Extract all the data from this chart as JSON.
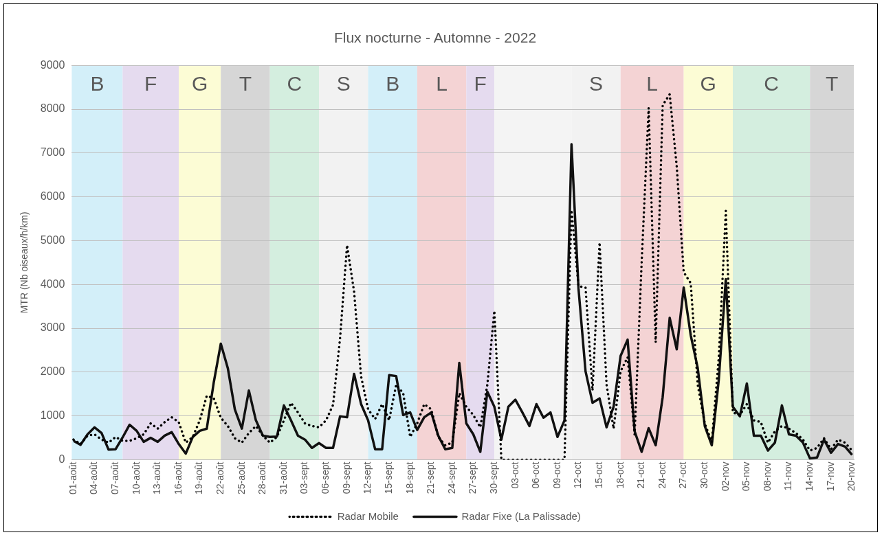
{
  "chart_data": {
    "type": "line",
    "title": "Flux nocturne - Automne - 2022",
    "ylabel": "MTR (Nb oiseaux/h/km)",
    "marker": "none",
    "grid": "y",
    "legend": "bottom",
    "x": [
      "--08-01",
      "--08-02",
      "--08-03",
      "--08-04",
      "--08-05",
      "--08-06",
      "--08-07",
      "--08-08",
      "--08-09",
      "--08-10",
      "--08-11",
      "--08-12",
      "--08-13",
      "--08-14",
      "--08-15",
      "--08-16",
      "--08-17",
      "--08-18",
      "--08-19",
      "--08-20",
      "--08-21",
      "--08-22",
      "--08-23",
      "--08-24",
      "--08-25",
      "--08-26",
      "--08-27",
      "--08-28",
      "--08-29",
      "--08-30",
      "--08-31",
      "--09-01",
      "--09-02",
      "--09-03",
      "--09-04",
      "--09-05",
      "--09-06",
      "--09-07",
      "--09-08",
      "--09-09",
      "--09-10",
      "--09-11",
      "--09-12",
      "--09-13",
      "--09-14",
      "--09-15",
      "--09-16",
      "--09-17",
      "--09-18",
      "--09-19",
      "--09-20",
      "--09-21",
      "--09-22",
      "--09-23",
      "--09-24",
      "--09-25",
      "--09-26",
      "--09-27",
      "--09-28",
      "--09-29",
      "--09-30",
      "--10-01",
      "--10-02",
      "--10-03",
      "--10-04",
      "--10-05",
      "--10-06",
      "--10-07",
      "--10-08",
      "--10-09",
      "--10-10",
      "--10-11",
      "--10-12",
      "--10-13",
      "--10-14",
      "--10-15",
      "--10-16",
      "--10-17",
      "--10-18",
      "--10-19",
      "--10-20",
      "--10-21",
      "--10-22",
      "--10-23",
      "--10-24",
      "--10-25",
      "--10-26",
      "--10-27",
      "--10-28",
      "--10-29",
      "--10-30",
      "--10-31",
      "--11-01",
      "--11-02",
      "--11-03",
      "--11-04",
      "--11-05",
      "--11-06",
      "--11-07",
      "--11-08",
      "--11-09",
      "--11-10",
      "--11-11",
      "--11-12",
      "--11-13",
      "--11-14",
      "--11-15",
      "--11-16",
      "--11-17",
      "--11-18",
      "--11-19",
      "--11-20"
    ],
    "xlim": [
      "--07-31T18:00",
      "--11-20T06:00"
    ],
    "xticks": [
      {
        "value": "--08-01",
        "label": "01-août"
      },
      {
        "value": "--08-04",
        "label": "04-août"
      },
      {
        "value": "--08-07",
        "label": "07-août"
      },
      {
        "value": "--08-10",
        "label": "10-août"
      },
      {
        "value": "--08-13",
        "label": "13-août"
      },
      {
        "value": "--08-16",
        "label": "16-août"
      },
      {
        "value": "--08-19",
        "label": "19-août"
      },
      {
        "value": "--08-22",
        "label": "22-août"
      },
      {
        "value": "--08-25",
        "label": "25-août"
      },
      {
        "value": "--08-28",
        "label": "28-août"
      },
      {
        "value": "--08-31",
        "label": "31-août"
      },
      {
        "value": "--09-03",
        "label": "03-sept"
      },
      {
        "value": "--09-06",
        "label": "06-sept"
      },
      {
        "value": "--09-09",
        "label": "09-sept"
      },
      {
        "value": "--09-12",
        "label": "12-sept"
      },
      {
        "value": "--09-15",
        "label": "15-sept"
      },
      {
        "value": "--09-18",
        "label": "18-sept"
      },
      {
        "value": "--09-21",
        "label": "21-sept"
      },
      {
        "value": "--09-24",
        "label": "24-sept"
      },
      {
        "value": "--09-27",
        "label": "27-sept"
      },
      {
        "value": "--09-30",
        "label": "30-sept"
      },
      {
        "value": "--10-03",
        "label": "03-oct"
      },
      {
        "value": "--10-06",
        "label": "06-oct"
      },
      {
        "value": "--10-09",
        "label": "09-oct"
      },
      {
        "value": "--10-12",
        "label": "12-oct"
      },
      {
        "value": "--10-15",
        "label": "15-oct"
      },
      {
        "value": "--10-18",
        "label": "18-oct"
      },
      {
        "value": "--10-21",
        "label": "21-oct"
      },
      {
        "value": "--10-24",
        "label": "24-oct"
      },
      {
        "value": "--10-27",
        "label": "27-oct"
      },
      {
        "value": "--10-30",
        "label": "30-oct"
      },
      {
        "value": "--11-02",
        "label": "02-nov"
      },
      {
        "value": "--11-05",
        "label": "05-nov"
      },
      {
        "value": "--11-08",
        "label": "08-nov"
      },
      {
        "value": "--11-11",
        "label": "11-nov"
      },
      {
        "value": "--11-14",
        "label": "14-nov"
      },
      {
        "value": "--11-17",
        "label": "17-nov"
      },
      {
        "value": "--11-20",
        "label": "20-nov"
      }
    ],
    "ylim": [
      0,
      9000
    ],
    "yticks": [
      0,
      1000,
      2000,
      3000,
      4000,
      5000,
      6000,
      7000,
      8000,
      9000
    ],
    "series": [
      {
        "name": "Radar Mobile",
        "color": "#000000",
        "line_style": "dotted",
        "values": [
          460,
          360,
          550,
          580,
          460,
          390,
          520,
          430,
          430,
          490,
          580,
          830,
          710,
          860,
          970,
          860,
          390,
          520,
          900,
          1460,
          1400,
          960,
          770,
          490,
          390,
          610,
          770,
          550,
          390,
          520,
          900,
          1300,
          1080,
          830,
          770,
          740,
          900,
          1250,
          2770,
          4900,
          3840,
          1900,
          1150,
          930,
          1270,
          900,
          1710,
          1520,
          520,
          830,
          1270,
          1150,
          520,
          330,
          390,
          1520,
          1210,
          1020,
          740,
          1710,
          3400,
          0,
          0,
          0,
          0,
          0,
          0,
          0,
          0,
          0,
          0,
          5700,
          3960,
          3930,
          1580,
          4960,
          1710,
          710,
          2020,
          2340,
          580,
          4500,
          8030,
          2680,
          8090,
          8340,
          6700,
          4280,
          4030,
          1710,
          830,
          400,
          2340,
          5680,
          1080,
          1020,
          1270,
          900,
          860,
          390,
          650,
          770,
          710,
          610,
          460,
          210,
          270,
          490,
          240,
          460,
          390,
          210
        ]
      },
      {
        "name": "Radar Fixe (La Palissade)",
        "color": "#111111",
        "line_style": "solid",
        "values": [
          430,
          340,
          580,
          740,
          610,
          230,
          240,
          510,
          800,
          660,
          410,
          500,
          410,
          550,
          630,
          360,
          140,
          520,
          660,
          710,
          1770,
          2650,
          2090,
          1150,
          710,
          1580,
          900,
          550,
          520,
          530,
          1240,
          900,
          550,
          460,
          270,
          380,
          270,
          270,
          990,
          970,
          1960,
          1270,
          900,
          240,
          240,
          1930,
          1910,
          1020,
          1080,
          680,
          970,
          1080,
          550,
          240,
          270,
          2210,
          830,
          580,
          180,
          1550,
          1210,
          460,
          1210,
          1370,
          1080,
          770,
          1270,
          960,
          1080,
          520,
          900,
          7200,
          3900,
          2020,
          1300,
          1400,
          740,
          1210,
          2370,
          2740,
          650,
          180,
          720,
          330,
          1430,
          3240,
          2520,
          3930,
          2840,
          2090,
          770,
          330,
          1830,
          4120,
          1210,
          990,
          1740,
          550,
          550,
          210,
          390,
          1240,
          580,
          550,
          390,
          30,
          50,
          460,
          160,
          360,
          300,
          110
        ]
      }
    ],
    "bands": [
      {
        "axis": "x",
        "from": "--07-31T18:00",
        "to": "--08-08",
        "label": "B",
        "color": "#d3eff9"
      },
      {
        "axis": "x",
        "from": "--08-08",
        "to": "--08-16",
        "label": "F",
        "color": "#e5dbef"
      },
      {
        "axis": "x",
        "from": "--08-16",
        "to": "--08-22",
        "label": "G",
        "color": "#fcfcd5"
      },
      {
        "axis": "x",
        "from": "--08-22",
        "to": "--08-29",
        "label": "T",
        "color": "#d6d6d6"
      },
      {
        "axis": "x",
        "from": "--08-29",
        "to": "--09-05",
        "label": "C",
        "color": "#d4eedf"
      },
      {
        "axis": "x",
        "from": "--09-05",
        "to": "--09-12",
        "label": "S",
        "color": "#f2f2f2"
      },
      {
        "axis": "x",
        "from": "--09-12",
        "to": "--09-19",
        "label": "B",
        "color": "#d3eff9"
      },
      {
        "axis": "x",
        "from": "--09-19",
        "to": "--09-26",
        "label": "L",
        "color": "#f4d3d4"
      },
      {
        "axis": "x",
        "from": "--09-26",
        "to": "--09-30",
        "label": "F",
        "color": "#e5dbef"
      },
      {
        "axis": "x",
        "from": "--09-30",
        "to": "--10-11",
        "color": "#f4f4f4"
      },
      {
        "axis": "x",
        "from": "--10-11",
        "to": "--10-18",
        "label": "S",
        "color": "#f2f2f2"
      },
      {
        "axis": "x",
        "from": "--10-18",
        "to": "--10-27",
        "label": "L",
        "color": "#f4d3d4"
      },
      {
        "axis": "x",
        "from": "--10-27",
        "to": "--11-03",
        "label": "G",
        "color": "#fcfcd5"
      },
      {
        "axis": "x",
        "from": "--11-03",
        "to": "--11-14",
        "label": "C",
        "color": "#d4eedf"
      },
      {
        "axis": "x",
        "from": "--11-14",
        "to": "--11-20T06:00",
        "label": "T",
        "color": "#d6d6d6"
      }
    ]
  }
}
